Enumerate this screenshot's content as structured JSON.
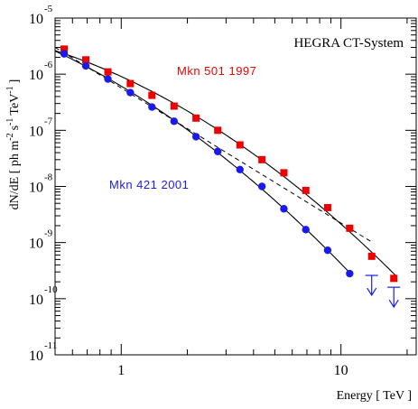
{
  "chart_data": {
    "type": "scatter",
    "title": "HEGRA CT-System",
    "xlabel": "Energy [ TeV ]",
    "ylabel": {
      "prefix": "dN/dE [ ph m",
      "exp1": "-2",
      "mid1": "s",
      "exp2": "-1",
      "mid2": "TeV",
      "exp3": "-1",
      "suffix": "]"
    },
    "xscale": "log",
    "yscale": "log",
    "xlim": [
      0.5,
      22
    ],
    "ylim": [
      1e-11,
      1e-05
    ],
    "xticks": [
      {
        "value": 1,
        "label": "1"
      },
      {
        "value": 10,
        "label": "10"
      }
    ],
    "yticks": [
      {
        "value": 1e-05,
        "base": "10",
        "exp": "-5"
      },
      {
        "value": 1e-06,
        "base": "10",
        "exp": "-6"
      },
      {
        "value": 1e-07,
        "base": "10",
        "exp": "-7"
      },
      {
        "value": 1e-08,
        "base": "10",
        "exp": "-8"
      },
      {
        "value": 1e-09,
        "base": "10",
        "exp": "-9"
      },
      {
        "value": 1e-10,
        "base": "10",
        "exp": "-10"
      },
      {
        "value": 1e-11,
        "base": "10",
        "exp": "-11"
      }
    ],
    "grid": false,
    "series": [
      {
        "name": "Mkn 501 1997",
        "color": "#ee0000",
        "marker": "square",
        "x": [
          0.55,
          0.69,
          0.87,
          1.1,
          1.38,
          1.74,
          2.19,
          2.75,
          3.47,
          4.37,
          5.5,
          6.92,
          8.7,
          10.96,
          13.8,
          17.4
        ],
        "y": [
          2.8e-06,
          1.8e-06,
          1.1e-06,
          6.8e-07,
          4.2e-07,
          2.7e-07,
          1.65e-07,
          1e-07,
          5.5e-08,
          3e-08,
          1.75e-08,
          8.5e-09,
          4.2e-09,
          1.8e-09,
          5.7e-10,
          2.3e-10
        ],
        "upper_limits": [],
        "fit": "curved power law (solid line)"
      },
      {
        "name": "Mkn 421 2001",
        "color": "#1a1aee",
        "marker": "circle",
        "x": [
          0.55,
          0.69,
          0.87,
          1.1,
          1.38,
          1.74,
          2.19,
          2.75,
          3.47,
          4.37,
          5.5,
          6.92,
          8.7,
          10.96
        ],
        "y": [
          2.3e-06,
          1.4e-06,
          8.2e-07,
          4.7e-07,
          2.6e-07,
          1.45e-07,
          7.7e-08,
          4.2e-08,
          2e-08,
          1e-08,
          4e-09,
          1.7e-09,
          7.3e-10,
          2.8e-10
        ],
        "upper_limits": [
          {
            "x": 13.8,
            "y": 2.6e-10
          },
          {
            "x": 17.4,
            "y": 1.6e-10
          }
        ],
        "fit": "curved power law (solid line); pure power law (dashed line)"
      }
    ]
  }
}
